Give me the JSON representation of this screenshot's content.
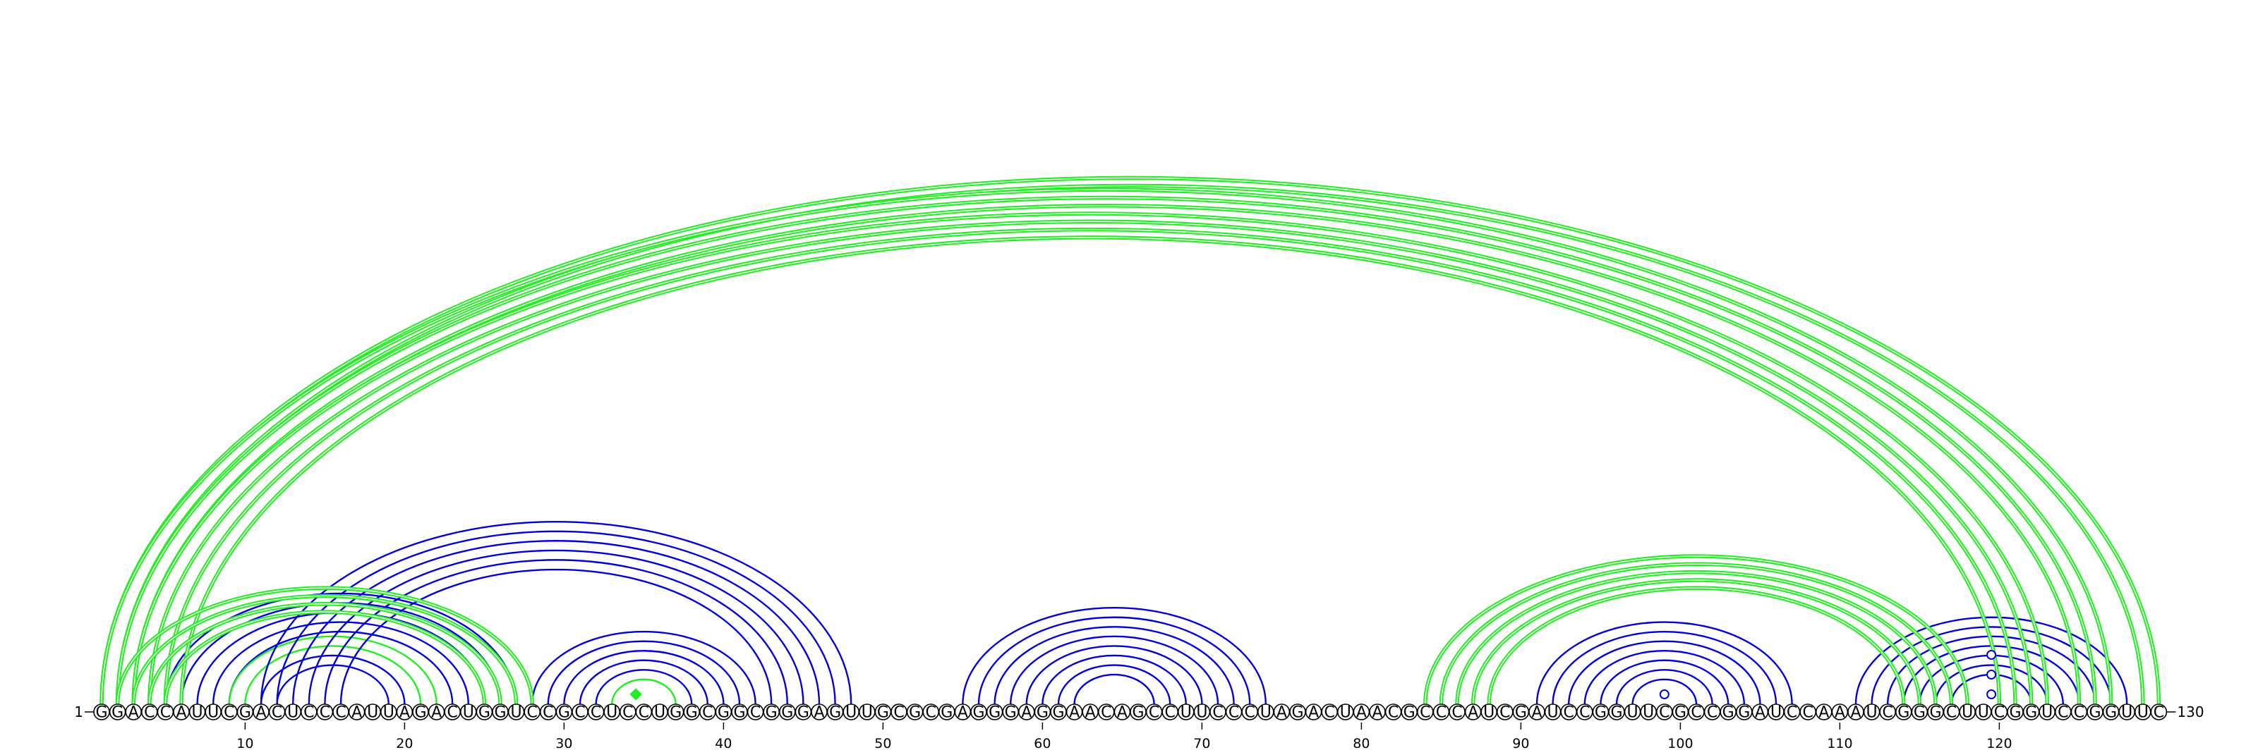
{
  "sequence": "GGACCAUUCGACUCCCAUUAGACUGGUCCGCCUCCUGGCGGCGGGAGUUGCGCGAGGGAGGAACAGCCUUCCCUAGACUAACGCCCAUCGAUCCGGUUCGCCGGAUCCAAAUCGGGCUUCGGUCCGGUUC",
  "start_label": "1",
  "end_label": "130",
  "tick_labels": [
    "10",
    "20",
    "30",
    "40",
    "50",
    "60",
    "70",
    "80",
    "90",
    "100",
    "110",
    "120"
  ],
  "colors": {
    "upper": "#22ee22",
    "lower_blue": "#0000dd",
    "lower_green": "#22ee22",
    "marker_fill": "#ffffff"
  },
  "upper_arcs": [
    {
      "i": 1,
      "j": 130
    },
    {
      "i": 2,
      "j": 129
    },
    {
      "i": 1,
      "j": 127
    },
    {
      "i": 2,
      "j": 126
    },
    {
      "i": 3,
      "j": 125
    },
    {
      "i": 3,
      "j": 123
    },
    {
      "i": 4,
      "j": 122
    },
    {
      "i": 5,
      "j": 121
    },
    {
      "i": 6,
      "j": 120
    },
    {
      "i": 2,
      "j": 28
    },
    {
      "i": 3,
      "j": 27
    },
    {
      "i": 4,
      "j": 26
    },
    {
      "i": 5,
      "j": 25
    },
    {
      "i": 84,
      "j": 118
    },
    {
      "i": 85,
      "j": 117
    },
    {
      "i": 86,
      "j": 116
    },
    {
      "i": 87,
      "j": 115
    },
    {
      "i": 88,
      "j": 114
    }
  ],
  "lower_arcs": [
    {
      "i": 5,
      "j": 27,
      "c": "b"
    },
    {
      "i": 6,
      "j": 26,
      "c": "b"
    },
    {
      "i": 7,
      "j": 25,
      "c": "b"
    },
    {
      "i": 8,
      "j": 24,
      "c": "b"
    },
    {
      "i": 9,
      "j": 23,
      "c": "b"
    },
    {
      "i": 9,
      "j": 22,
      "c": "g"
    },
    {
      "i": 10,
      "j": 21,
      "c": "g"
    },
    {
      "i": 11,
      "j": 20,
      "c": "b"
    },
    {
      "i": 12,
      "j": 19,
      "c": "b"
    },
    {
      "i": 11,
      "j": 48,
      "c": "b"
    },
    {
      "i": 12,
      "j": 47,
      "c": "b"
    },
    {
      "i": 13,
      "j": 46,
      "c": "b"
    },
    {
      "i": 14,
      "j": 45,
      "c": "b"
    },
    {
      "i": 15,
      "j": 44,
      "c": "b"
    },
    {
      "i": 16,
      "j": 43,
      "c": "b"
    },
    {
      "i": 28,
      "j": 42,
      "c": "b"
    },
    {
      "i": 29,
      "j": 41,
      "c": "b"
    },
    {
      "i": 30,
      "j": 40,
      "c": "b"
    },
    {
      "i": 31,
      "j": 39,
      "c": "b"
    },
    {
      "i": 32,
      "j": 38,
      "c": "b"
    },
    {
      "i": 33,
      "j": 37,
      "c": "g"
    },
    {
      "i": 55,
      "j": 74,
      "c": "b"
    },
    {
      "i": 56,
      "j": 73,
      "c": "b"
    },
    {
      "i": 57,
      "j": 72,
      "c": "b"
    },
    {
      "i": 58,
      "j": 71,
      "c": "b"
    },
    {
      "i": 59,
      "j": 70,
      "c": "b"
    },
    {
      "i": 60,
      "j": 69,
      "c": "b"
    },
    {
      "i": 61,
      "j": 68,
      "c": "b"
    },
    {
      "i": 62,
      "j": 67,
      "c": "b"
    },
    {
      "i": 91,
      "j": 107,
      "c": "b"
    },
    {
      "i": 92,
      "j": 106,
      "c": "b"
    },
    {
      "i": 93,
      "j": 105,
      "c": "b"
    },
    {
      "i": 94,
      "j": 104,
      "c": "b"
    },
    {
      "i": 95,
      "j": 103,
      "c": "b"
    },
    {
      "i": 96,
      "j": 102,
      "c": "b"
    },
    {
      "i": 97,
      "j": 101,
      "c": "b"
    },
    {
      "i": 111,
      "j": 128,
      "c": "b"
    },
    {
      "i": 112,
      "j": 127,
      "c": "b"
    },
    {
      "i": 113,
      "j": 126,
      "c": "b"
    },
    {
      "i": 114,
      "j": 125,
      "c": "b"
    },
    {
      "i": 115,
      "j": 124,
      "c": "b"
    },
    {
      "i": 116,
      "j": 123,
      "c": "b"
    },
    {
      "i": 117,
      "j": 122,
      "c": "b"
    }
  ],
  "markers": [
    {
      "at": 34.5,
      "depth": 5,
      "shape": "diamond",
      "c": "g"
    },
    {
      "at": 99,
      "depth": 5,
      "shape": "circle",
      "c": "b"
    },
    {
      "at": 119.5,
      "depth": 5,
      "shape": "circle",
      "c": "b"
    },
    {
      "at": 119.5,
      "depth": 3,
      "shape": "circle",
      "c": "b"
    },
    {
      "at": 119.5,
      "depth": 1,
      "shape": "circle",
      "c": "b"
    }
  ]
}
